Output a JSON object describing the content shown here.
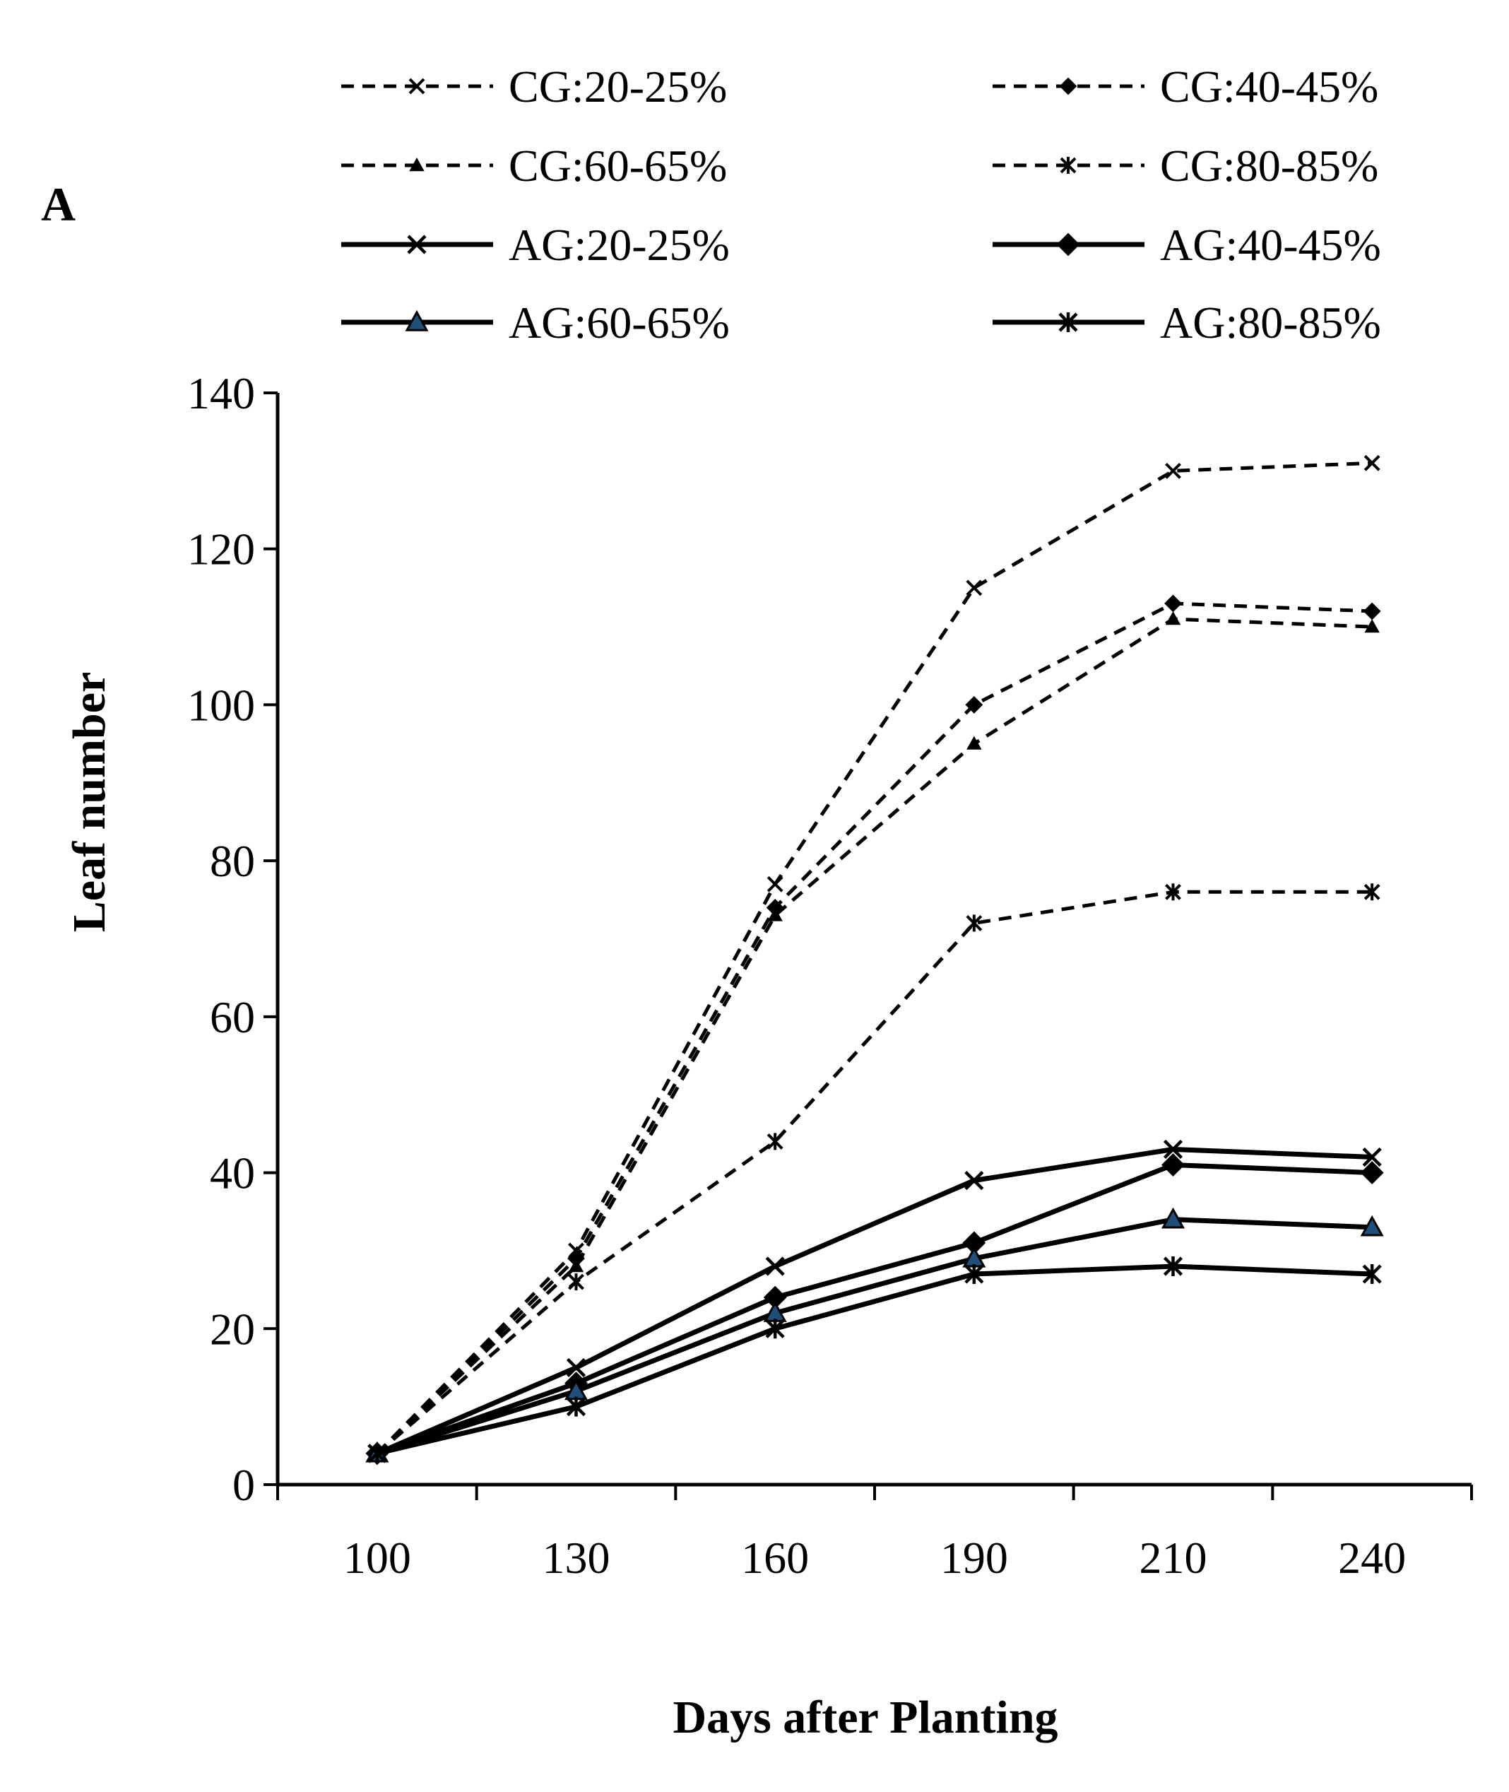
{
  "chart_data": {
    "type": "line",
    "panel_label": "A",
    "title": "",
    "xlabel": "Days after Planting",
    "ylabel": "Leaf number",
    "categories": [
      "100",
      "130",
      "160",
      "190",
      "210",
      "240"
    ],
    "ylim": [
      0,
      140
    ],
    "yticks": [
      "0",
      "20",
      "40",
      "60",
      "80",
      "100",
      "120",
      "140"
    ],
    "grid": false,
    "legend_position": "top",
    "series": [
      {
        "name": "CG:20-25%",
        "style": "dashed",
        "marker": "x",
        "values": [
          4,
          30,
          77,
          115,
          130,
          131
        ]
      },
      {
        "name": "CG:40-45%",
        "style": "dashed",
        "marker": "diamond",
        "values": [
          4,
          29,
          74,
          100,
          113,
          112
        ]
      },
      {
        "name": "CG:60-65%",
        "style": "dashed",
        "marker": "triangle",
        "values": [
          4,
          28,
          73,
          95,
          111,
          110
        ]
      },
      {
        "name": "CG:80-85%",
        "style": "dashed",
        "marker": "star",
        "values": [
          4,
          26,
          44,
          72,
          76,
          76
        ]
      },
      {
        "name": "AG:20-25%",
        "style": "solid",
        "marker": "x",
        "values": [
          4,
          15,
          28,
          39,
          43,
          42
        ]
      },
      {
        "name": "AG:40-45%",
        "style": "solid",
        "marker": "diamond",
        "values": [
          4,
          13,
          24,
          31,
          41,
          40
        ]
      },
      {
        "name": "AG:60-65%",
        "style": "solid",
        "marker": "triangle",
        "values": [
          4,
          12,
          22,
          29,
          34,
          33
        ]
      },
      {
        "name": "AG:80-85%",
        "style": "solid",
        "marker": "star",
        "values": [
          4,
          10,
          20,
          27,
          28,
          27
        ]
      }
    ]
  },
  "colors": {
    "line": "#000000",
    "triangle_fill": "#1f4e79"
  }
}
